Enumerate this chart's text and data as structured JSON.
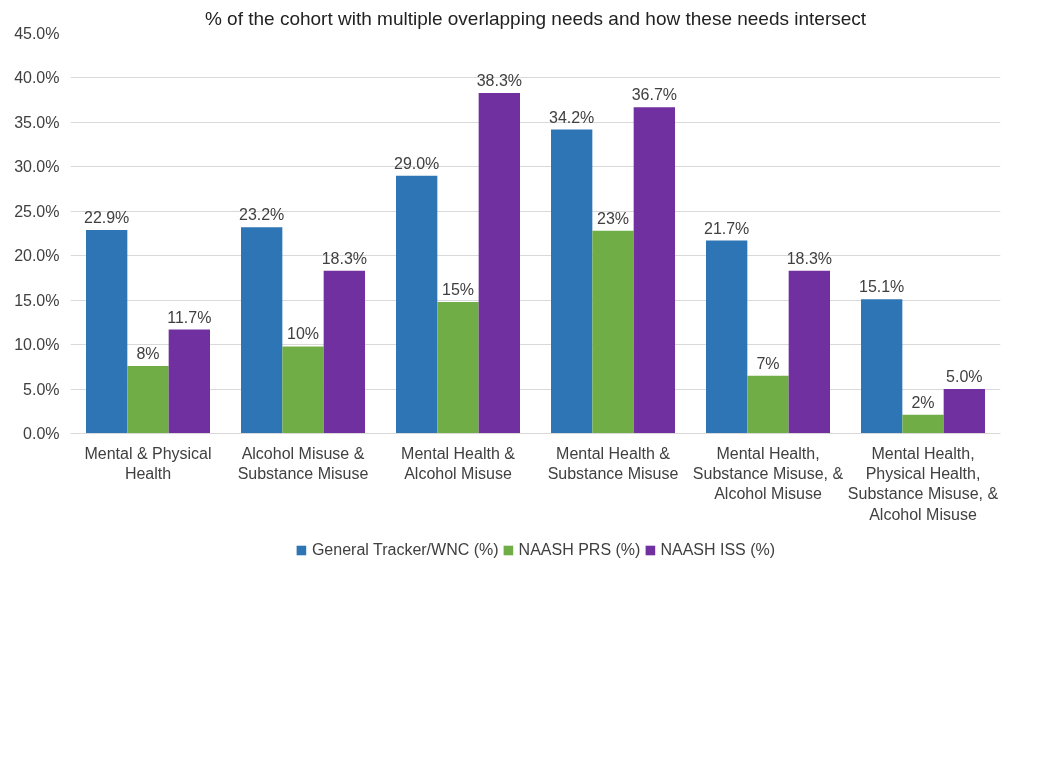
{
  "chart_data": {
    "type": "bar",
    "title": "% of the cohort with multiple overlapping needs and how these needs intersect",
    "categories": [
      "Mental & Physical Health",
      "Alcohol Misuse & Substance Misuse",
      "Mental Health & Alcohol Misuse",
      "Mental Health & Substance Misuse",
      "Mental Health, Substance Misuse, & Alcohol Misuse",
      "Mental Health, Physical Health, Substance Misuse, & Alcohol Misuse"
    ],
    "series": [
      {
        "name": "General Tracker/WNC (%)",
        "color": "#2e75b6",
        "values": [
          22.9,
          23.2,
          29.0,
          34.2,
          21.7,
          15.1
        ],
        "value_labels": [
          "22.9%",
          "23.2%",
          "29.0%",
          "34.2%",
          "21.7%",
          "15.1%"
        ]
      },
      {
        "name": "NAASH PRS (%)",
        "color": "#70ad47",
        "values": [
          7.6,
          9.8,
          14.8,
          22.8,
          6.5,
          2.1
        ],
        "value_labels": [
          "8%",
          "10%",
          "15%",
          "23%",
          "7%",
          "2%"
        ]
      },
      {
        "name": "NAASH ISS (%)",
        "color": "#7030a0",
        "values": [
          11.7,
          18.3,
          38.3,
          36.7,
          18.3,
          5.0
        ],
        "value_labels": [
          "11.7%",
          "18.3%",
          "38.3%",
          "36.7%",
          "18.3%",
          "5.0%"
        ]
      }
    ],
    "ylim": [
      0,
      45
    ],
    "yticks": [
      {
        "value": 0,
        "label": "0.0%"
      },
      {
        "value": 5,
        "label": "5.0%"
      },
      {
        "value": 10,
        "label": "10.0%"
      },
      {
        "value": 15,
        "label": "15.0%"
      },
      {
        "value": 20,
        "label": "20.0%"
      },
      {
        "value": 25,
        "label": "25.0%"
      },
      {
        "value": 30,
        "label": "30.0%"
      },
      {
        "value": 35,
        "label": "35.0%"
      },
      {
        "value": 40,
        "label": "40.0%"
      },
      {
        "value": 45,
        "label": "45.0%"
      }
    ],
    "grid": "y",
    "legend": "bottom"
  }
}
